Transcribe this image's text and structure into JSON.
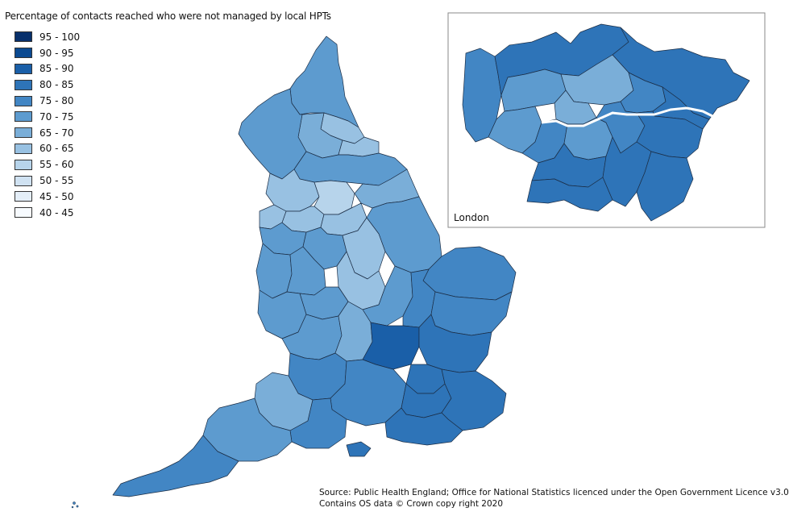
{
  "map": {
    "title": "Percentage of contacts reached who were not managed by local HPTs",
    "legend": [
      {
        "label": "95 - 100",
        "color": "#08306b"
      },
      {
        "label": "90 - 95",
        "color": "#0b4a91"
      },
      {
        "label": "85 - 90",
        "color": "#1a5fa8"
      },
      {
        "label": "80 - 85",
        "color": "#2e74b8"
      },
      {
        "label": "75 - 80",
        "color": "#4286c4"
      },
      {
        "label": "70 - 75",
        "color": "#5d9bcf"
      },
      {
        "label": "65 - 70",
        "color": "#7aaed8"
      },
      {
        "label": "60 - 65",
        "color": "#98c1e2"
      },
      {
        "label": "55 - 60",
        "color": "#b7d4eb"
      },
      {
        "label": "50 - 55",
        "color": "#d0e2f2"
      },
      {
        "label": "45 - 50",
        "color": "#e4eef8"
      },
      {
        "label": "40 - 45",
        "color": "#f7fbff"
      }
    ],
    "inset_label": "London",
    "source_line1": "Source: Public Health England; Office for National Statistics licenced under the Open Government Licence v3.0",
    "source_line2": "Contains OS data © Crown copy right 2020"
  }
}
